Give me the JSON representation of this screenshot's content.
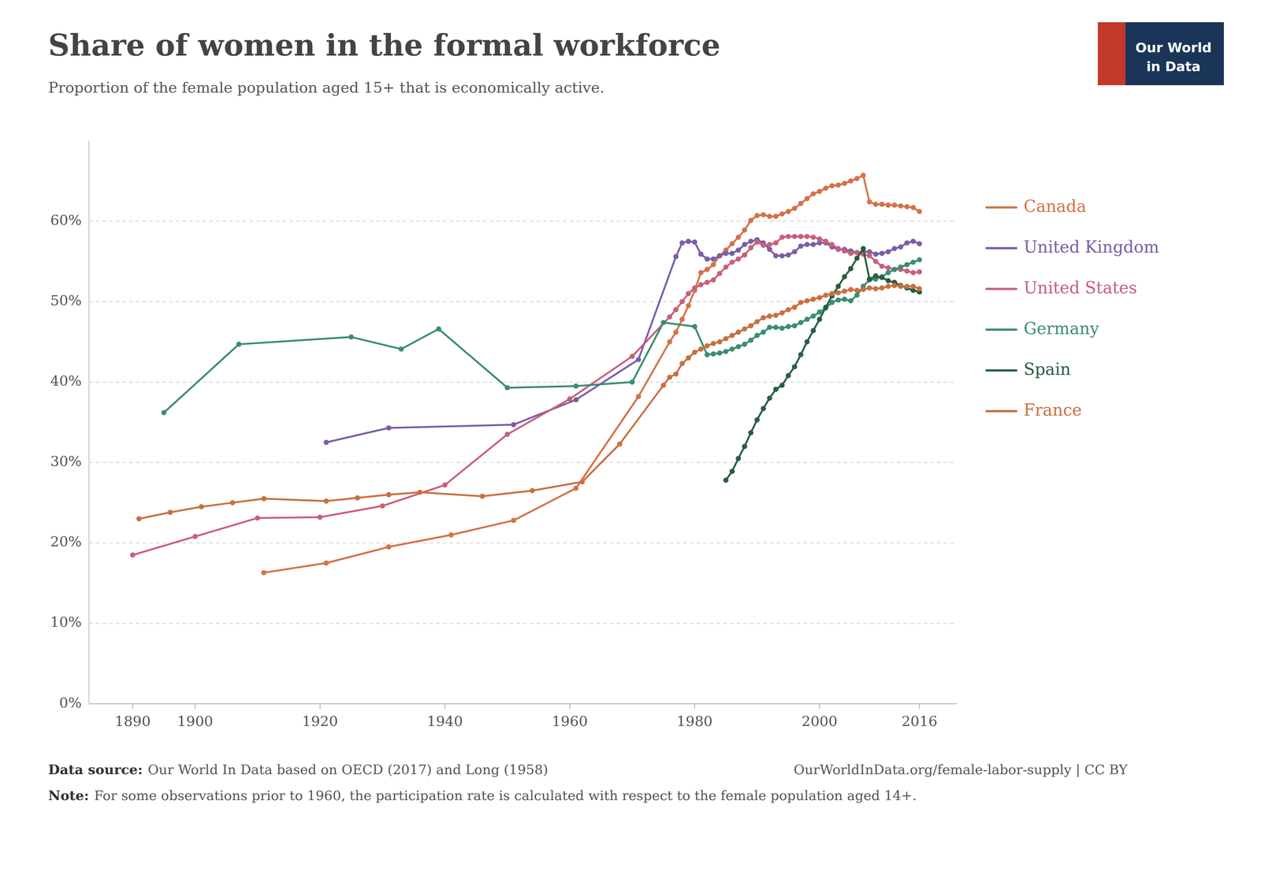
{
  "chart_data": {
    "type": "line",
    "title": "Share of women in the formal workforce",
    "subtitle": "Proportion of the female population aged 15+ that is economically active.",
    "annotations": [
      "Data source:",
      "Our World In Data based on OECD (2017) and Long (1958)",
      "OurWorldInData.org/female-labor-supply | CC BY",
      "Note:",
      "For some observations prior to 1960, the participation rate is calculated with respect to the female population aged 14+.",
      "Our World",
      "in Data"
    ],
    "xlim": [
      1883,
      2022
    ],
    "ylim": [
      0,
      0.7
    ],
    "xticks": [
      1890,
      1900,
      1920,
      1940,
      1960,
      1980,
      2000,
      2016
    ],
    "yticks": [
      {
        "value": 0,
        "label": "0%"
      },
      {
        "value": 0.1,
        "label": "10%"
      },
      {
        "value": 0.2,
        "label": "20%"
      },
      {
        "value": 0.3,
        "label": "30%"
      },
      {
        "value": 0.4,
        "label": "40%"
      },
      {
        "value": 0.5,
        "label": "50%"
      },
      {
        "value": 0.6,
        "label": "60%"
      }
    ],
    "grid": true,
    "legend": "right",
    "marker": "circle",
    "series": [
      {
        "name": "Canada",
        "color": "#d4724a",
        "x": [
          1911,
          1921,
          1931,
          1941,
          1951,
          1961,
          1971,
          1976,
          1977,
          1978,
          1979,
          1980,
          1981,
          1982,
          1983,
          1984,
          1985,
          1986,
          1987,
          1988,
          1989,
          1990,
          1991,
          1992,
          1993,
          1994,
          1995,
          1996,
          1997,
          1998,
          1999,
          2000,
          2001,
          2002,
          2003,
          2004,
          2005,
          2006,
          2007,
          2008,
          2009,
          2010,
          2011,
          2012,
          2013,
          2014,
          2015,
          2016
        ],
        "values": [
          0.163,
          0.175,
          0.195,
          0.21,
          0.228,
          0.268,
          0.382,
          0.45,
          0.462,
          0.478,
          0.495,
          0.514,
          0.536,
          0.54,
          0.546,
          0.557,
          0.564,
          0.572,
          0.58,
          0.589,
          0.601,
          0.607,
          0.608,
          0.606,
          0.606,
          0.609,
          0.612,
          0.616,
          0.622,
          0.628,
          0.634,
          0.637,
          0.641,
          0.644,
          0.645,
          0.647,
          0.65,
          0.653,
          0.657,
          0.624,
          0.621,
          0.621,
          0.62,
          0.62,
          0.619,
          0.618,
          0.617,
          0.612
        ]
      },
      {
        "name": "United Kingdom",
        "color": "#7b5ea7",
        "x": [
          1921,
          1931,
          1951,
          1961,
          1971,
          1977,
          1978,
          1979,
          1980,
          1981,
          1982,
          1983,
          1984,
          1985,
          1986,
          1987,
          1988,
          1989,
          1990,
          1991,
          1992,
          1993,
          1994,
          1995,
          1996,
          1997,
          1998,
          1999,
          2000,
          2001,
          2002,
          2003,
          2004,
          2005,
          2006,
          2007,
          2008,
          2009,
          2010,
          2011,
          2012,
          2013,
          2014,
          2015,
          2016
        ],
        "values": [
          0.325,
          0.343,
          0.347,
          0.378,
          0.428,
          0.556,
          0.573,
          0.575,
          0.574,
          0.559,
          0.553,
          0.553,
          0.557,
          0.56,
          0.56,
          0.564,
          0.571,
          0.575,
          0.577,
          0.573,
          0.565,
          0.557,
          0.557,
          0.558,
          0.562,
          0.569,
          0.571,
          0.571,
          0.573,
          0.573,
          0.568,
          0.565,
          0.565,
          0.563,
          0.561,
          0.562,
          0.562,
          0.559,
          0.56,
          0.562,
          0.566,
          0.568,
          0.573,
          0.575,
          0.572
        ]
      },
      {
        "name": "United States",
        "color": "#c9607a",
        "x": [
          1890,
          1900,
          1910,
          1920,
          1930,
          1940,
          1950,
          1960,
          1970,
          1976,
          1977,
          1978,
          1979,
          1980,
          1981,
          1982,
          1983,
          1984,
          1985,
          1986,
          1987,
          1988,
          1989,
          1990,
          1991,
          1992,
          1993,
          1994,
          1995,
          1996,
          1997,
          1998,
          1999,
          2000,
          2001,
          2002,
          2003,
          2004,
          2005,
          2006,
          2007,
          2008,
          2009,
          2010,
          2011,
          2012,
          2013,
          2014,
          2015,
          2016
        ],
        "values": [
          0.185,
          0.208,
          0.231,
          0.232,
          0.246,
          0.272,
          0.335,
          0.379,
          0.432,
          0.481,
          0.49,
          0.5,
          0.51,
          0.517,
          0.521,
          0.524,
          0.527,
          0.535,
          0.543,
          0.549,
          0.553,
          0.558,
          0.567,
          0.574,
          0.57,
          0.571,
          0.573,
          0.58,
          0.581,
          0.581,
          0.581,
          0.581,
          0.58,
          0.578,
          0.575,
          0.571,
          0.566,
          0.563,
          0.56,
          0.561,
          0.559,
          0.557,
          0.55,
          0.544,
          0.542,
          0.54,
          0.54,
          0.538,
          0.536,
          0.537
        ]
      },
      {
        "name": "Germany",
        "color": "#3a8f6e",
        "x": [
          1895,
          1907,
          1925,
          1933,
          1939,
          1950,
          1961,
          1970,
          1975,
          1980,
          1982,
          1983,
          1984,
          1985,
          1986,
          1987,
          1988,
          1989,
          1990,
          1991,
          1992,
          1993,
          1994,
          1995,
          1996,
          1997,
          1998,
          1999,
          2000,
          2001,
          2002,
          2003,
          2004,
          2005,
          2006,
          2007,
          2008,
          2009,
          2010,
          2011,
          2012,
          2013,
          2014,
          2015,
          2016
        ],
        "values": [
          0.362,
          0.447,
          0.456,
          0.441,
          0.466,
          0.393,
          0.395,
          0.4,
          0.474,
          0.469,
          0.434,
          0.435,
          0.436,
          0.438,
          0.441,
          0.444,
          0.447,
          0.452,
          0.458,
          0.462,
          0.468,
          0.468,
          0.467,
          0.469,
          0.47,
          0.474,
          0.478,
          0.482,
          0.487,
          0.492,
          0.499,
          0.502,
          0.503,
          0.501,
          0.508,
          0.519,
          0.527,
          0.528,
          0.531,
          0.536,
          0.54,
          0.543,
          0.546,
          0.549,
          0.552
        ]
      },
      {
        "name": "Spain",
        "color": "#2a5e40",
        "x": [
          1985,
          1986,
          1987,
          1988,
          1989,
          1990,
          1991,
          1992,
          1993,
          1994,
          1995,
          1996,
          1997,
          1998,
          1999,
          2000,
          2001,
          2002,
          2003,
          2004,
          2005,
          2006,
          2007,
          2008,
          2009,
          2010,
          2011,
          2012,
          2013,
          2014,
          2015,
          2016
        ],
        "values": [
          0.278,
          0.289,
          0.305,
          0.32,
          0.337,
          0.353,
          0.367,
          0.38,
          0.391,
          0.396,
          0.408,
          0.419,
          0.434,
          0.45,
          0.464,
          0.478,
          0.493,
          0.507,
          0.519,
          0.531,
          0.541,
          0.554,
          0.566,
          0.528,
          0.532,
          0.53,
          0.526,
          0.524,
          0.52,
          0.517,
          0.514,
          0.512
        ]
      },
      {
        "name": "France",
        "color": "#c97040",
        "x": [
          1891,
          1896,
          1901,
          1906,
          1911,
          1921,
          1926,
          1931,
          1936,
          1946,
          1954,
          1962,
          1968,
          1975,
          1976,
          1977,
          1978,
          1979,
          1980,
          1981,
          1982,
          1983,
          1984,
          1985,
          1986,
          1987,
          1988,
          1989,
          1990,
          1991,
          1992,
          1993,
          1994,
          1995,
          1996,
          1997,
          1998,
          1999,
          2000,
          2001,
          2002,
          2003,
          2004,
          2005,
          2006,
          2007,
          2008,
          2009,
          2010,
          2011,
          2012,
          2013,
          2014,
          2015,
          2016
        ],
        "values": [
          0.23,
          0.238,
          0.245,
          0.25,
          0.255,
          0.252,
          0.256,
          0.26,
          0.263,
          0.258,
          0.265,
          0.276,
          0.323,
          0.396,
          0.406,
          0.41,
          0.423,
          0.43,
          0.437,
          0.441,
          0.445,
          0.448,
          0.45,
          0.454,
          0.458,
          0.462,
          0.466,
          0.47,
          0.475,
          0.48,
          0.482,
          0.483,
          0.486,
          0.49,
          0.493,
          0.499,
          0.501,
          0.503,
          0.505,
          0.508,
          0.51,
          0.511,
          0.513,
          0.515,
          0.514,
          0.515,
          0.517,
          0.516,
          0.517,
          0.519,
          0.52,
          0.519,
          0.519,
          0.519,
          0.516
        ]
      }
    ]
  }
}
